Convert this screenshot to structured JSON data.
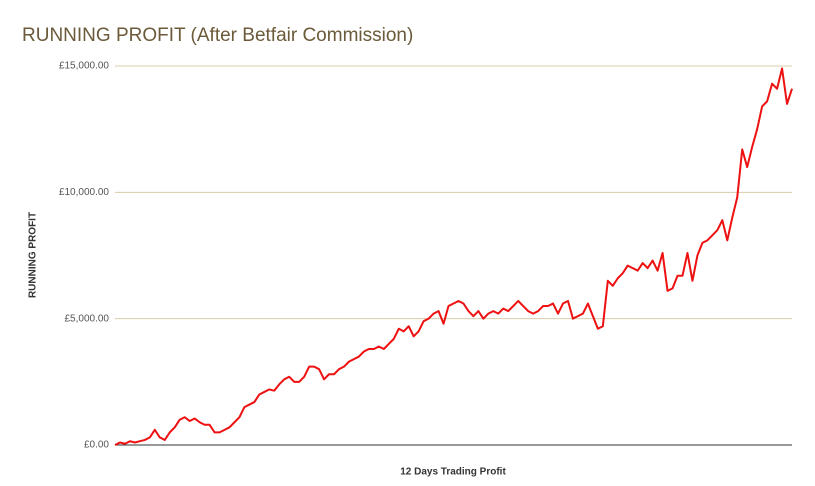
{
  "chart_data": {
    "type": "line",
    "title": "RUNNING PROFIT (After Betfair Commission)",
    "y_label": "RUNNING PROFIT",
    "x_label": "12 Days Trading Profit",
    "color": "#ee1111",
    "grid": true,
    "ylim": [
      0,
      15000
    ],
    "yticks": [
      {
        "value": 0,
        "label": "£0.00"
      },
      {
        "value": 5000,
        "label": "£5,000.00"
      },
      {
        "value": 10000,
        "label": "£10,000.00"
      },
      {
        "value": 15000,
        "label": "£15,000.00"
      }
    ],
    "values": [
      0,
      100,
      50,
      150,
      100,
      150,
      200,
      300,
      600,
      300,
      200,
      500,
      700,
      1000,
      1100,
      950,
      1050,
      900,
      800,
      800,
      500,
      500,
      600,
      700,
      900,
      1100,
      1500,
      1600,
      1700,
      2000,
      2100,
      2200,
      2150,
      2400,
      2600,
      2700,
      2500,
      2500,
      2700,
      3100,
      3100,
      3000,
      2600,
      2800,
      2800,
      3000,
      3100,
      3300,
      3400,
      3500,
      3700,
      3800,
      3800,
      3900,
      3800,
      4000,
      4200,
      4600,
      4500,
      4700,
      4300,
      4500,
      4900,
      5000,
      5200,
      5300,
      4800,
      5500,
      5600,
      5700,
      5600,
      5300,
      5100,
      5300,
      5000,
      5200,
      5300,
      5200,
      5400,
      5300,
      5500,
      5700,
      5500,
      5300,
      5200,
      5300,
      5500,
      5500,
      5600,
      5200,
      5600,
      5700,
      5000,
      5100,
      5200,
      5600,
      5100,
      4600,
      4700,
      6500,
      6300,
      6600,
      6800,
      7100,
      7000,
      6900,
      7200,
      7000,
      7300,
      6900,
      7600,
      6100,
      6200,
      6700,
      6700,
      7600,
      6500,
      7500,
      8000,
      8100,
      8300,
      8500,
      8900,
      8100,
      9000,
      9800,
      11700,
      11000,
      11800,
      12500,
      13400,
      13600,
      14300,
      14100,
      14900,
      13500,
      14100
    ]
  }
}
